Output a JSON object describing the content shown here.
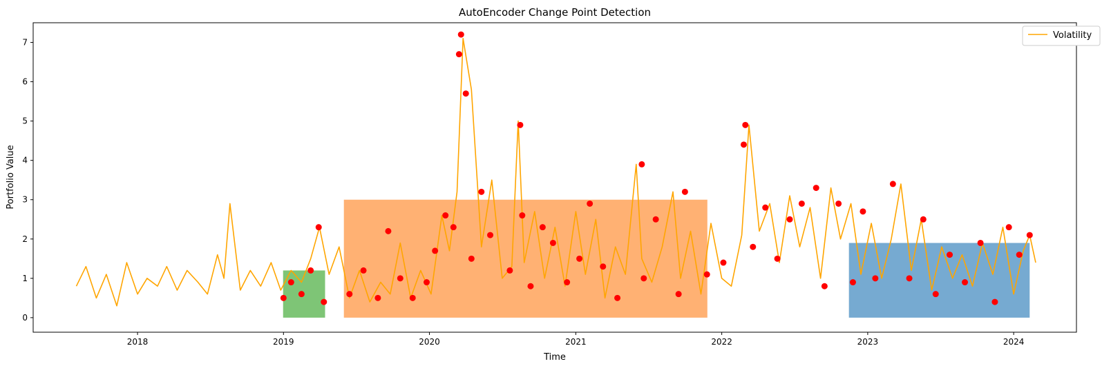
{
  "chart_data": {
    "type": "line",
    "title": "AutoEncoder Change Point Detection",
    "xlabel": "Time",
    "ylabel": "Portfolio Value",
    "xlim": [
      "2017-04-15",
      "2024-06-06"
    ],
    "ylim": [
      -0.37,
      7.5
    ],
    "x_ticks": [
      "2018",
      "2019",
      "2020",
      "2021",
      "2022",
      "2023",
      "2024"
    ],
    "y_ticks": [
      0,
      1,
      2,
      3,
      4,
      5,
      6,
      7
    ],
    "grid": false,
    "legend_position": "top-right",
    "colors": {
      "line": "#ffa500",
      "markers": "#ff0000",
      "segment_green": "#77c26f",
      "segment_orange": "#ffad6b",
      "segment_blue": "#6fa5cf"
    },
    "series": [
      {
        "name": "Volatility",
        "x": [
          "2017-08-01",
          "2017-08-25",
          "2017-09-20",
          "2017-10-15",
          "2017-11-10",
          "2017-12-05",
          "2018-01-01",
          "2018-01-25",
          "2018-02-20",
          "2018-03-15",
          "2018-04-10",
          "2018-05-05",
          "2018-06-01",
          "2018-06-25",
          "2018-07-20",
          "2018-08-05",
          "2018-08-20",
          "2018-09-15",
          "2018-10-10",
          "2018-11-05",
          "2018-12-01",
          "2018-12-25",
          "2019-01-20",
          "2019-02-15",
          "2019-03-10",
          "2019-04-01",
          "2019-04-25",
          "2019-05-20",
          "2019-06-15",
          "2019-07-10",
          "2019-08-05",
          "2019-09-01",
          "2019-09-25",
          "2019-10-20",
          "2019-11-15",
          "2019-12-10",
          "2020-01-05",
          "2020-02-01",
          "2020-02-20",
          "2020-03-10",
          "2020-03-25",
          "2020-04-15",
          "2020-05-10",
          "2020-06-05",
          "2020-07-01",
          "2020-07-25",
          "2020-08-10",
          "2020-08-25",
          "2020-09-20",
          "2020-10-15",
          "2020-11-10",
          "2020-12-05",
          "2021-01-01",
          "2021-01-25",
          "2021-02-20",
          "2021-03-15",
          "2021-04-10",
          "2021-05-05",
          "2021-06-01",
          "2021-06-15",
          "2021-07-10",
          "2021-08-05",
          "2021-09-01",
          "2021-09-20",
          "2021-10-15",
          "2021-11-10",
          "2021-12-05",
          "2022-01-01",
          "2022-01-25",
          "2022-02-20",
          "2022-03-10",
          "2022-04-05",
          "2022-05-01",
          "2022-05-25",
          "2022-06-20",
          "2022-07-15",
          "2022-08-10",
          "2022-09-05",
          "2022-10-01",
          "2022-10-25",
          "2022-11-20",
          "2022-12-15",
          "2023-01-10",
          "2023-02-05",
          "2023-03-01",
          "2023-03-25",
          "2023-04-20",
          "2023-05-15",
          "2023-06-10",
          "2023-07-05",
          "2023-08-01",
          "2023-08-25",
          "2023-09-20",
          "2023-10-15",
          "2023-11-10",
          "2023-12-05",
          "2024-01-01",
          "2024-01-25",
          "2024-02-10",
          "2024-02-25"
        ],
        "values": [
          0.8,
          1.3,
          0.5,
          1.1,
          0.3,
          1.4,
          0.6,
          1.0,
          0.8,
          1.3,
          0.7,
          1.2,
          0.9,
          0.6,
          1.6,
          1.0,
          2.9,
          0.7,
          1.2,
          0.8,
          1.4,
          0.7,
          1.2,
          0.9,
          1.5,
          2.3,
          1.1,
          1.8,
          0.5,
          1.2,
          0.4,
          0.9,
          0.6,
          1.9,
          0.5,
          1.2,
          0.6,
          2.6,
          1.7,
          3.2,
          7.1,
          5.8,
          1.8,
          3.5,
          1.0,
          1.3,
          5.0,
          1.4,
          2.7,
          1.0,
          2.3,
          0.8,
          2.7,
          1.1,
          2.5,
          0.5,
          1.8,
          1.1,
          3.9,
          1.5,
          0.9,
          1.8,
          3.2,
          1.0,
          2.2,
          0.6,
          2.4,
          1.0,
          0.8,
          2.1,
          4.9,
          2.2,
          2.9,
          1.4,
          3.1,
          1.8,
          2.8,
          1.0,
          3.3,
          2.0,
          2.9,
          1.1,
          2.4,
          1.0,
          2.0,
          3.4,
          1.2,
          2.5,
          0.7,
          1.8,
          1.0,
          1.6,
          0.8,
          1.9,
          1.1,
          2.3,
          0.6,
          1.7,
          2.1,
          1.4
        ]
      }
    ],
    "change_points": {
      "x": [
        "2019-01-01",
        "2019-01-20",
        "2019-02-15",
        "2019-03-10",
        "2019-03-30",
        "2019-04-12",
        "2019-06-15",
        "2019-07-20",
        "2019-08-25",
        "2019-09-20",
        "2019-10-20",
        "2019-11-20",
        "2019-12-25",
        "2020-01-15",
        "2020-02-10",
        "2020-03-01",
        "2020-03-15",
        "2020-03-20",
        "2020-04-01",
        "2020-04-15",
        "2020-05-10",
        "2020-06-01",
        "2020-07-20",
        "2020-08-15",
        "2020-08-20",
        "2020-09-10",
        "2020-10-10",
        "2020-11-05",
        "2020-12-10",
        "2021-01-10",
        "2021-02-05",
        "2021-03-10",
        "2021-04-15",
        "2021-06-15",
        "2021-06-20",
        "2021-07-20",
        "2021-09-15",
        "2021-10-01",
        "2021-11-25",
        "2022-01-05",
        "2022-02-25",
        "2022-03-01",
        "2022-03-20",
        "2022-04-20",
        "2022-05-20",
        "2022-06-20",
        "2022-07-20",
        "2022-08-25",
        "2022-09-15",
        "2022-10-20",
        "2022-11-25",
        "2022-12-20",
        "2023-01-20",
        "2023-03-05",
        "2023-04-15",
        "2023-05-20",
        "2023-06-20",
        "2023-07-25",
        "2023-09-01",
        "2023-10-10",
        "2023-11-15",
        "2023-12-20",
        "2024-01-15",
        "2024-02-10"
      ],
      "values": [
        0.5,
        0.9,
        0.6,
        1.2,
        2.3,
        0.4,
        0.6,
        1.2,
        0.5,
        2.2,
        1.0,
        0.5,
        0.9,
        1.7,
        2.6,
        2.3,
        6.7,
        7.2,
        5.7,
        1.5,
        3.2,
        2.1,
        1.2,
        4.9,
        2.6,
        0.8,
        2.3,
        1.9,
        0.9,
        1.5,
        2.9,
        1.3,
        0.5,
        3.9,
        1.0,
        2.5,
        0.6,
        3.2,
        1.1,
        1.4,
        4.4,
        4.9,
        1.8,
        2.8,
        1.5,
        2.5,
        2.9,
        3.3,
        0.8,
        2.9,
        0.9,
        2.7,
        1.0,
        3.4,
        1.0,
        2.5,
        0.6,
        1.6,
        0.9,
        1.9,
        0.4,
        2.3,
        1.6,
        2.1
      ]
    },
    "segments": [
      {
        "start": "2018-12-31",
        "end": "2019-04-15",
        "level": 1.2
      },
      {
        "start": "2019-06-01",
        "end": "2021-11-26",
        "level": 3.0
      },
      {
        "start": "2022-11-15",
        "end": "2024-02-10",
        "level": 1.9
      }
    ]
  }
}
